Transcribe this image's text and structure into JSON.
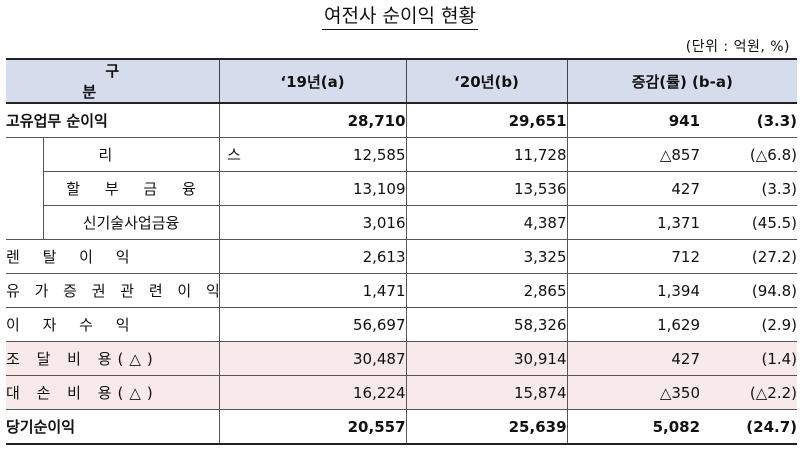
{
  "title": "여전사 순이익 현황",
  "unit": "(단위 : 억원, %)",
  "headers": {
    "category": "구 분",
    "col_2019": "‘19년(a)",
    "col_2020": "‘20년(b)",
    "col_change": "증감(률) (b-a)"
  },
  "rows": [
    {
      "label": "고유업무 순이익",
      "v2019": "28,710",
      "v2020": "29,651",
      "change": "941",
      "rate": "(3.3)"
    },
    {
      "label": "리 스",
      "v2019": "12,585",
      "v2020": "11,728",
      "change": "△857",
      "rate": "(△6.8)"
    },
    {
      "label": "할 부 금 융",
      "v2019": "13,109",
      "v2020": "13,536",
      "change": "427",
      "rate": "(3.3)"
    },
    {
      "label": "신기술사업금융",
      "v2019": "3,016",
      "v2020": "4,387",
      "change": "1,371",
      "rate": "(45.5)"
    },
    {
      "label": "렌 탈 이 익",
      "v2019": "2,613",
      "v2020": "3,325",
      "change": "712",
      "rate": "(27.2)"
    },
    {
      "label": "유 가 증 권 관 련 이 익",
      "v2019": "1,471",
      "v2020": "2,865",
      "change": "1,394",
      "rate": "(94.8)"
    },
    {
      "label": "이 자 수 익",
      "v2019": "56,697",
      "v2020": "58,326",
      "change": "1,629",
      "rate": "(2.9)"
    },
    {
      "label": "조 달 비 용(△)",
      "v2019": "30,487",
      "v2020": "30,914",
      "change": "427",
      "rate": "(1.4)"
    },
    {
      "label": "대 손 비 용(△)",
      "v2019": "16,224",
      "v2020": "15,874",
      "change": "△350",
      "rate": "(△2.2)"
    },
    {
      "label": "당기순이익",
      "v2019": "20,557",
      "v2020": "25,639",
      "change": "5,082",
      "rate": "(24.7)"
    }
  ],
  "colors": {
    "header_bg": "#d5dcec",
    "highlight_bg": "#f8e9ea"
  }
}
